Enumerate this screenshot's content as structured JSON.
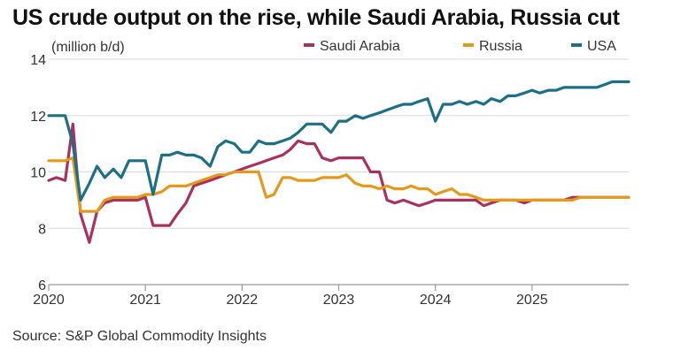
{
  "title": "US crude output on the rise, while Saudi Arabia, Russia cut",
  "source": "Source: S&P Global Commodity Insights",
  "colors": {
    "Saudi Arabia": "#a8325e",
    "Russia": "#e39a1c",
    "USA": "#1d6f86",
    "grid": "#d9d9d9",
    "axis": "#9a9a9a"
  },
  "chart_data": {
    "type": "line",
    "title": "US crude output on the rise, while Saudi Arabia, Russia cut",
    "ylabel": "(million b/d)",
    "xlabel": "",
    "ylim": [
      6,
      14
    ],
    "yticks": [
      6,
      8,
      10,
      12,
      14
    ],
    "xlim": [
      2020.0,
      2026.0
    ],
    "xticks": [
      "2020",
      "2021",
      "2022",
      "2023",
      "2024",
      "2025"
    ],
    "grid": "horizontal",
    "legend": "top-right",
    "series": [
      {
        "name": "Saudi Arabia",
        "points": [
          [
            2020.0,
            9.7
          ],
          [
            2020.08,
            9.8
          ],
          [
            2020.17,
            9.7
          ],
          [
            2020.25,
            11.7
          ],
          [
            2020.33,
            8.5
          ],
          [
            2020.42,
            7.5
          ],
          [
            2020.5,
            8.6
          ],
          [
            2020.58,
            8.9
          ],
          [
            2020.67,
            9.0
          ],
          [
            2020.75,
            9.0
          ],
          [
            2020.83,
            9.0
          ],
          [
            2020.92,
            9.0
          ],
          [
            2021.0,
            9.1
          ],
          [
            2021.08,
            8.1
          ],
          [
            2021.17,
            8.1
          ],
          [
            2021.25,
            8.1
          ],
          [
            2021.33,
            8.5
          ],
          [
            2021.42,
            8.9
          ],
          [
            2021.5,
            9.5
          ],
          [
            2021.58,
            9.6
          ],
          [
            2021.67,
            9.7
          ],
          [
            2021.75,
            9.8
          ],
          [
            2021.83,
            9.9
          ],
          [
            2021.92,
            10.0
          ],
          [
            2022.0,
            10.1
          ],
          [
            2022.08,
            10.2
          ],
          [
            2022.17,
            10.3
          ],
          [
            2022.25,
            10.4
          ],
          [
            2022.33,
            10.5
          ],
          [
            2022.42,
            10.6
          ],
          [
            2022.5,
            10.8
          ],
          [
            2022.58,
            11.1
          ],
          [
            2022.67,
            11.0
          ],
          [
            2022.75,
            11.0
          ],
          [
            2022.83,
            10.5
          ],
          [
            2022.92,
            10.4
          ],
          [
            2023.0,
            10.5
          ],
          [
            2023.08,
            10.5
          ],
          [
            2023.17,
            10.5
          ],
          [
            2023.25,
            10.5
          ],
          [
            2023.33,
            10.0
          ],
          [
            2023.42,
            10.0
          ],
          [
            2023.5,
            9.0
          ],
          [
            2023.58,
            8.9
          ],
          [
            2023.67,
            9.0
          ],
          [
            2023.75,
            8.9
          ],
          [
            2023.83,
            8.8
          ],
          [
            2023.92,
            8.9
          ],
          [
            2024.0,
            9.0
          ],
          [
            2024.08,
            9.0
          ],
          [
            2024.17,
            9.0
          ],
          [
            2024.25,
            9.0
          ],
          [
            2024.33,
            9.0
          ],
          [
            2024.42,
            9.0
          ],
          [
            2024.5,
            8.8
          ],
          [
            2024.58,
            8.9
          ],
          [
            2024.67,
            9.0
          ],
          [
            2024.75,
            9.0
          ],
          [
            2024.83,
            9.0
          ],
          [
            2024.92,
            8.9
          ],
          [
            2025.0,
            9.0
          ],
          [
            2025.08,
            9.0
          ],
          [
            2025.17,
            9.0
          ],
          [
            2025.25,
            9.0
          ],
          [
            2025.33,
            9.0
          ],
          [
            2025.42,
            9.1
          ],
          [
            2025.5,
            9.1
          ],
          [
            2025.58,
            9.1
          ],
          [
            2025.67,
            9.1
          ],
          [
            2025.75,
            9.1
          ],
          [
            2025.83,
            9.1
          ],
          [
            2025.92,
            9.1
          ],
          [
            2026.0,
            9.1
          ]
        ]
      },
      {
        "name": "Russia",
        "points": [
          [
            2020.0,
            10.4
          ],
          [
            2020.08,
            10.4
          ],
          [
            2020.17,
            10.4
          ],
          [
            2020.25,
            10.5
          ],
          [
            2020.33,
            8.6
          ],
          [
            2020.42,
            8.6
          ],
          [
            2020.5,
            8.6
          ],
          [
            2020.58,
            9.0
          ],
          [
            2020.67,
            9.1
          ],
          [
            2020.75,
            9.1
          ],
          [
            2020.83,
            9.1
          ],
          [
            2020.92,
            9.1
          ],
          [
            2021.0,
            9.2
          ],
          [
            2021.08,
            9.2
          ],
          [
            2021.17,
            9.3
          ],
          [
            2021.25,
            9.5
          ],
          [
            2021.33,
            9.5
          ],
          [
            2021.42,
            9.5
          ],
          [
            2021.5,
            9.6
          ],
          [
            2021.58,
            9.7
          ],
          [
            2021.67,
            9.8
          ],
          [
            2021.75,
            9.9
          ],
          [
            2021.83,
            9.9
          ],
          [
            2021.92,
            10.0
          ],
          [
            2022.0,
            10.0
          ],
          [
            2022.08,
            10.0
          ],
          [
            2022.17,
            10.0
          ],
          [
            2022.25,
            9.1
          ],
          [
            2022.33,
            9.2
          ],
          [
            2022.42,
            9.8
          ],
          [
            2022.5,
            9.8
          ],
          [
            2022.58,
            9.7
          ],
          [
            2022.67,
            9.7
          ],
          [
            2022.75,
            9.7
          ],
          [
            2022.83,
            9.8
          ],
          [
            2022.92,
            9.8
          ],
          [
            2023.0,
            9.8
          ],
          [
            2023.08,
            9.9
          ],
          [
            2023.17,
            9.6
          ],
          [
            2023.25,
            9.5
          ],
          [
            2023.33,
            9.5
          ],
          [
            2023.42,
            9.4
          ],
          [
            2023.5,
            9.5
          ],
          [
            2023.58,
            9.4
          ],
          [
            2023.67,
            9.4
          ],
          [
            2023.75,
            9.5
          ],
          [
            2023.83,
            9.4
          ],
          [
            2023.92,
            9.4
          ],
          [
            2024.0,
            9.2
          ],
          [
            2024.08,
            9.3
          ],
          [
            2024.17,
            9.4
          ],
          [
            2024.25,
            9.2
          ],
          [
            2024.33,
            9.2
          ],
          [
            2024.42,
            9.1
          ],
          [
            2024.5,
            9.0
          ],
          [
            2024.58,
            9.0
          ],
          [
            2024.67,
            9.0
          ],
          [
            2024.75,
            9.0
          ],
          [
            2024.83,
            9.0
          ],
          [
            2024.92,
            9.0
          ],
          [
            2025.0,
            9.0
          ],
          [
            2025.08,
            9.0
          ],
          [
            2025.17,
            9.0
          ],
          [
            2025.25,
            9.0
          ],
          [
            2025.33,
            9.0
          ],
          [
            2025.42,
            9.0
          ],
          [
            2025.5,
            9.1
          ],
          [
            2025.58,
            9.1
          ],
          [
            2025.67,
            9.1
          ],
          [
            2025.75,
            9.1
          ],
          [
            2025.83,
            9.1
          ],
          [
            2025.92,
            9.1
          ],
          [
            2026.0,
            9.1
          ]
        ]
      },
      {
        "name": "USA",
        "points": [
          [
            2020.0,
            12.0
          ],
          [
            2020.08,
            12.0
          ],
          [
            2020.17,
            12.0
          ],
          [
            2020.25,
            11.0
          ],
          [
            2020.33,
            9.0
          ],
          [
            2020.42,
            9.6
          ],
          [
            2020.5,
            10.2
          ],
          [
            2020.58,
            9.8
          ],
          [
            2020.67,
            10.1
          ],
          [
            2020.75,
            9.8
          ],
          [
            2020.83,
            10.4
          ],
          [
            2020.92,
            10.4
          ],
          [
            2021.0,
            10.4
          ],
          [
            2021.08,
            9.2
          ],
          [
            2021.17,
            10.6
          ],
          [
            2021.25,
            10.6
          ],
          [
            2021.33,
            10.7
          ],
          [
            2021.42,
            10.6
          ],
          [
            2021.5,
            10.6
          ],
          [
            2021.58,
            10.5
          ],
          [
            2021.67,
            10.2
          ],
          [
            2021.75,
            10.9
          ],
          [
            2021.83,
            11.1
          ],
          [
            2021.92,
            11.0
          ],
          [
            2022.0,
            10.7
          ],
          [
            2022.08,
            10.7
          ],
          [
            2022.17,
            11.1
          ],
          [
            2022.25,
            11.0
          ],
          [
            2022.33,
            11.0
          ],
          [
            2022.42,
            11.1
          ],
          [
            2022.5,
            11.2
          ],
          [
            2022.58,
            11.4
          ],
          [
            2022.67,
            11.7
          ],
          [
            2022.75,
            11.7
          ],
          [
            2022.83,
            11.7
          ],
          [
            2022.92,
            11.4
          ],
          [
            2023.0,
            11.8
          ],
          [
            2023.08,
            11.8
          ],
          [
            2023.17,
            12.0
          ],
          [
            2023.25,
            11.9
          ],
          [
            2023.33,
            12.0
          ],
          [
            2023.42,
            12.1
          ],
          [
            2023.5,
            12.2
          ],
          [
            2023.58,
            12.3
          ],
          [
            2023.67,
            12.4
          ],
          [
            2023.75,
            12.4
          ],
          [
            2023.83,
            12.5
          ],
          [
            2023.92,
            12.6
          ],
          [
            2024.0,
            11.8
          ],
          [
            2024.08,
            12.4
          ],
          [
            2024.17,
            12.4
          ],
          [
            2024.25,
            12.5
          ],
          [
            2024.33,
            12.4
          ],
          [
            2024.42,
            12.5
          ],
          [
            2024.5,
            12.4
          ],
          [
            2024.58,
            12.6
          ],
          [
            2024.67,
            12.5
          ],
          [
            2024.75,
            12.7
          ],
          [
            2024.83,
            12.7
          ],
          [
            2024.92,
            12.8
          ],
          [
            2025.0,
            12.9
          ],
          [
            2025.08,
            12.8
          ],
          [
            2025.17,
            12.9
          ],
          [
            2025.25,
            12.9
          ],
          [
            2025.33,
            13.0
          ],
          [
            2025.42,
            13.0
          ],
          [
            2025.5,
            13.0
          ],
          [
            2025.58,
            13.0
          ],
          [
            2025.67,
            13.0
          ],
          [
            2025.75,
            13.1
          ],
          [
            2025.83,
            13.2
          ],
          [
            2025.92,
            13.2
          ],
          [
            2026.0,
            13.2
          ]
        ]
      }
    ]
  }
}
